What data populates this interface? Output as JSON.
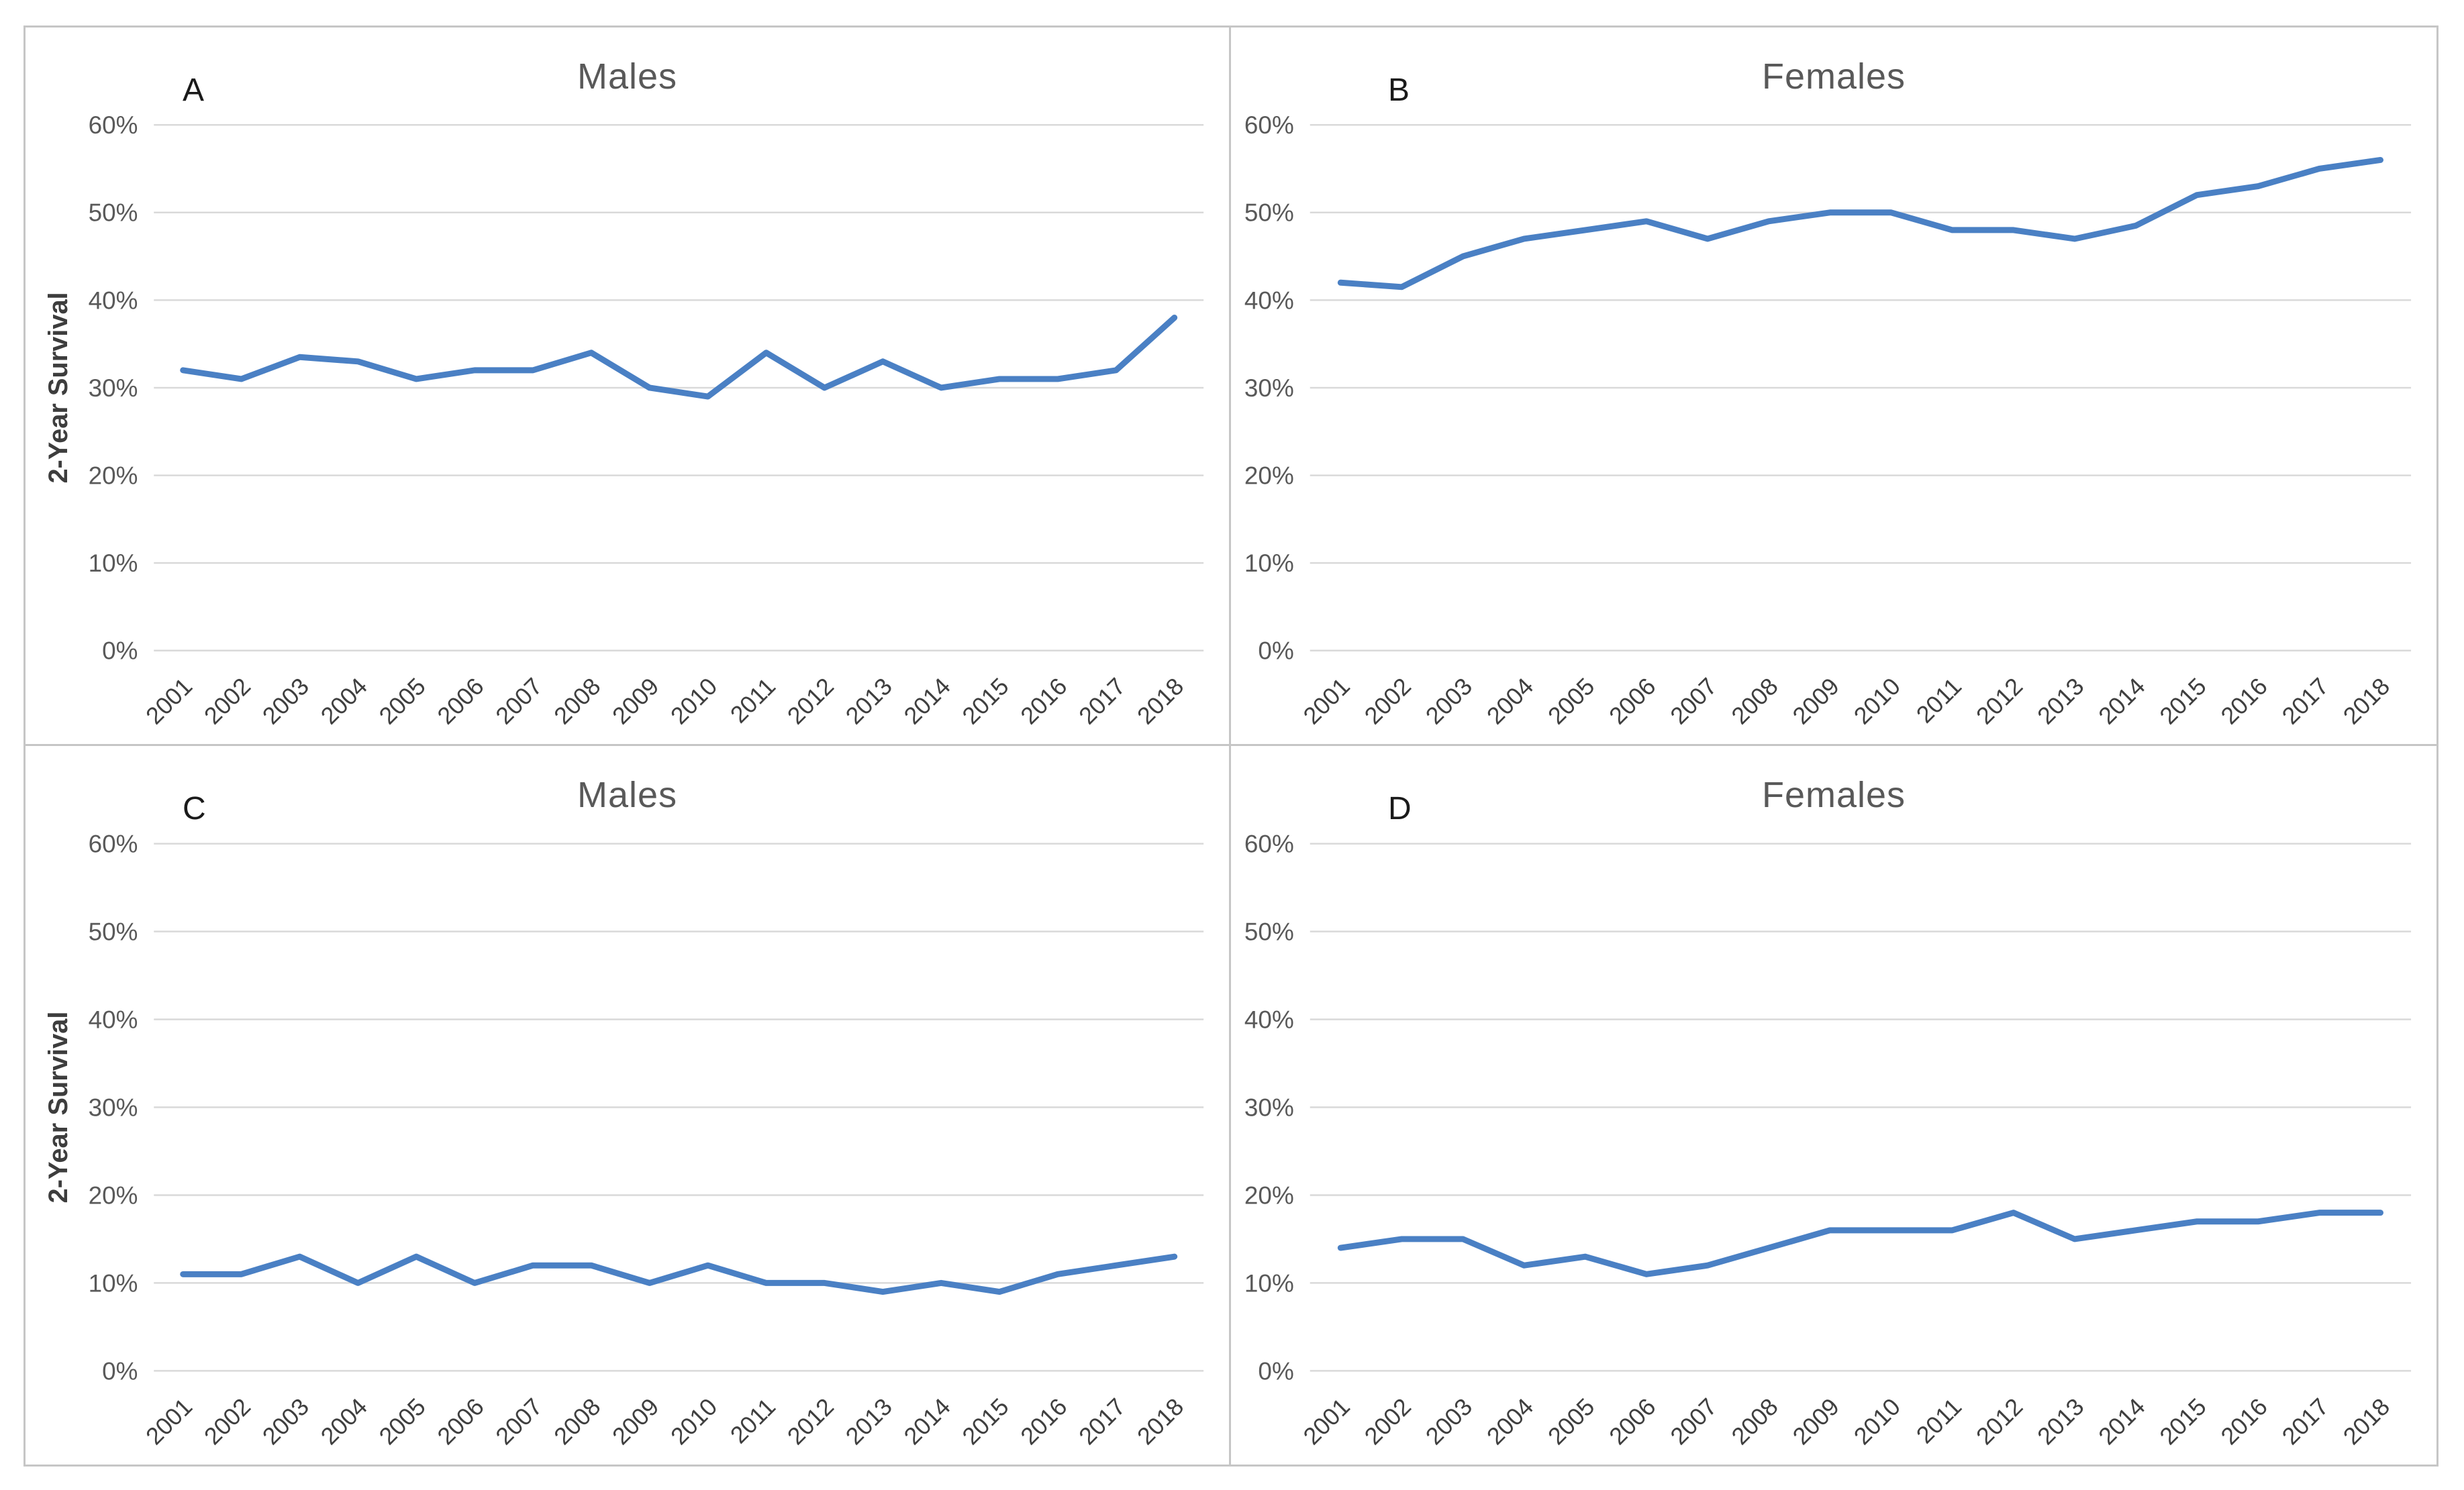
{
  "figure": {
    "panel_count": 4,
    "layout": "2x2"
  },
  "colors": {
    "line": "#4A80C4",
    "gridline": "#D9D9D9",
    "title": "#595959",
    "y_tick_label": "#595959",
    "x_tick_label": "#3f3f3f",
    "panel_letter": "#1a1a1a",
    "axis_label": "#3d3d3d",
    "border": "#c6c6c6",
    "background": "#ffffff"
  },
  "chart_data": [
    {
      "type": "line",
      "panel_label": "A",
      "title": "Males",
      "ylabel": "2-Year Survival",
      "xlabel": "",
      "legend": "none",
      "grid": "horizontal",
      "ylim": [
        0,
        60
      ],
      "ytick_step": 10,
      "ytick_suffix": "%",
      "categories": [
        "2001",
        "2002",
        "2003",
        "2004",
        "2005",
        "2006",
        "2007",
        "2008",
        "2009",
        "2010",
        "2011",
        "2012",
        "2013",
        "2014",
        "2015",
        "2016",
        "2017",
        "2018"
      ],
      "values": [
        32,
        31,
        33.5,
        33,
        31,
        32,
        32,
        34,
        30,
        29,
        34,
        30,
        33,
        30,
        31,
        31,
        32,
        38
      ]
    },
    {
      "type": "line",
      "panel_label": "B",
      "title": "Females",
      "ylabel": "",
      "xlabel": "",
      "legend": "none",
      "grid": "horizontal",
      "ylim": [
        0,
        60
      ],
      "ytick_step": 10,
      "ytick_suffix": "%",
      "categories": [
        "2001",
        "2002",
        "2003",
        "2004",
        "2005",
        "2006",
        "2007",
        "2008",
        "2009",
        "2010",
        "2011",
        "2012",
        "2013",
        "2014",
        "2015",
        "2016",
        "2017",
        "2018"
      ],
      "values": [
        42,
        41.5,
        45,
        47,
        48,
        49,
        47,
        49,
        50,
        50,
        48,
        48,
        47,
        48.5,
        52,
        53,
        55,
        56
      ]
    },
    {
      "type": "line",
      "panel_label": "C",
      "title": "Males",
      "ylabel": "2-Year Survival",
      "xlabel": "",
      "legend": "none",
      "grid": "horizontal",
      "ylim": [
        0,
        60
      ],
      "ytick_step": 10,
      "ytick_suffix": "%",
      "categories": [
        "2001",
        "2002",
        "2003",
        "2004",
        "2005",
        "2006",
        "2007",
        "2008",
        "2009",
        "2010",
        "2011",
        "2012",
        "2013",
        "2014",
        "2015",
        "2016",
        "2017",
        "2018"
      ],
      "values": [
        11,
        11,
        13,
        10,
        13,
        10,
        12,
        12,
        10,
        12,
        10,
        10,
        9,
        10,
        9,
        11,
        12,
        13
      ]
    },
    {
      "type": "line",
      "panel_label": "D",
      "title": "Females",
      "ylabel": "",
      "xlabel": "",
      "legend": "none",
      "grid": "horizontal",
      "ylim": [
        0,
        60
      ],
      "ytick_step": 10,
      "ytick_suffix": "%",
      "categories": [
        "2001",
        "2002",
        "2003",
        "2004",
        "2005",
        "2006",
        "2007",
        "2008",
        "2009",
        "2010",
        "2011",
        "2012",
        "2013",
        "2014",
        "2015",
        "2016",
        "2017",
        "2018"
      ],
      "values": [
        14,
        15,
        15,
        12,
        13,
        11,
        12,
        14,
        16,
        16,
        16,
        18,
        15,
        16,
        17,
        17,
        18,
        18
      ]
    }
  ]
}
